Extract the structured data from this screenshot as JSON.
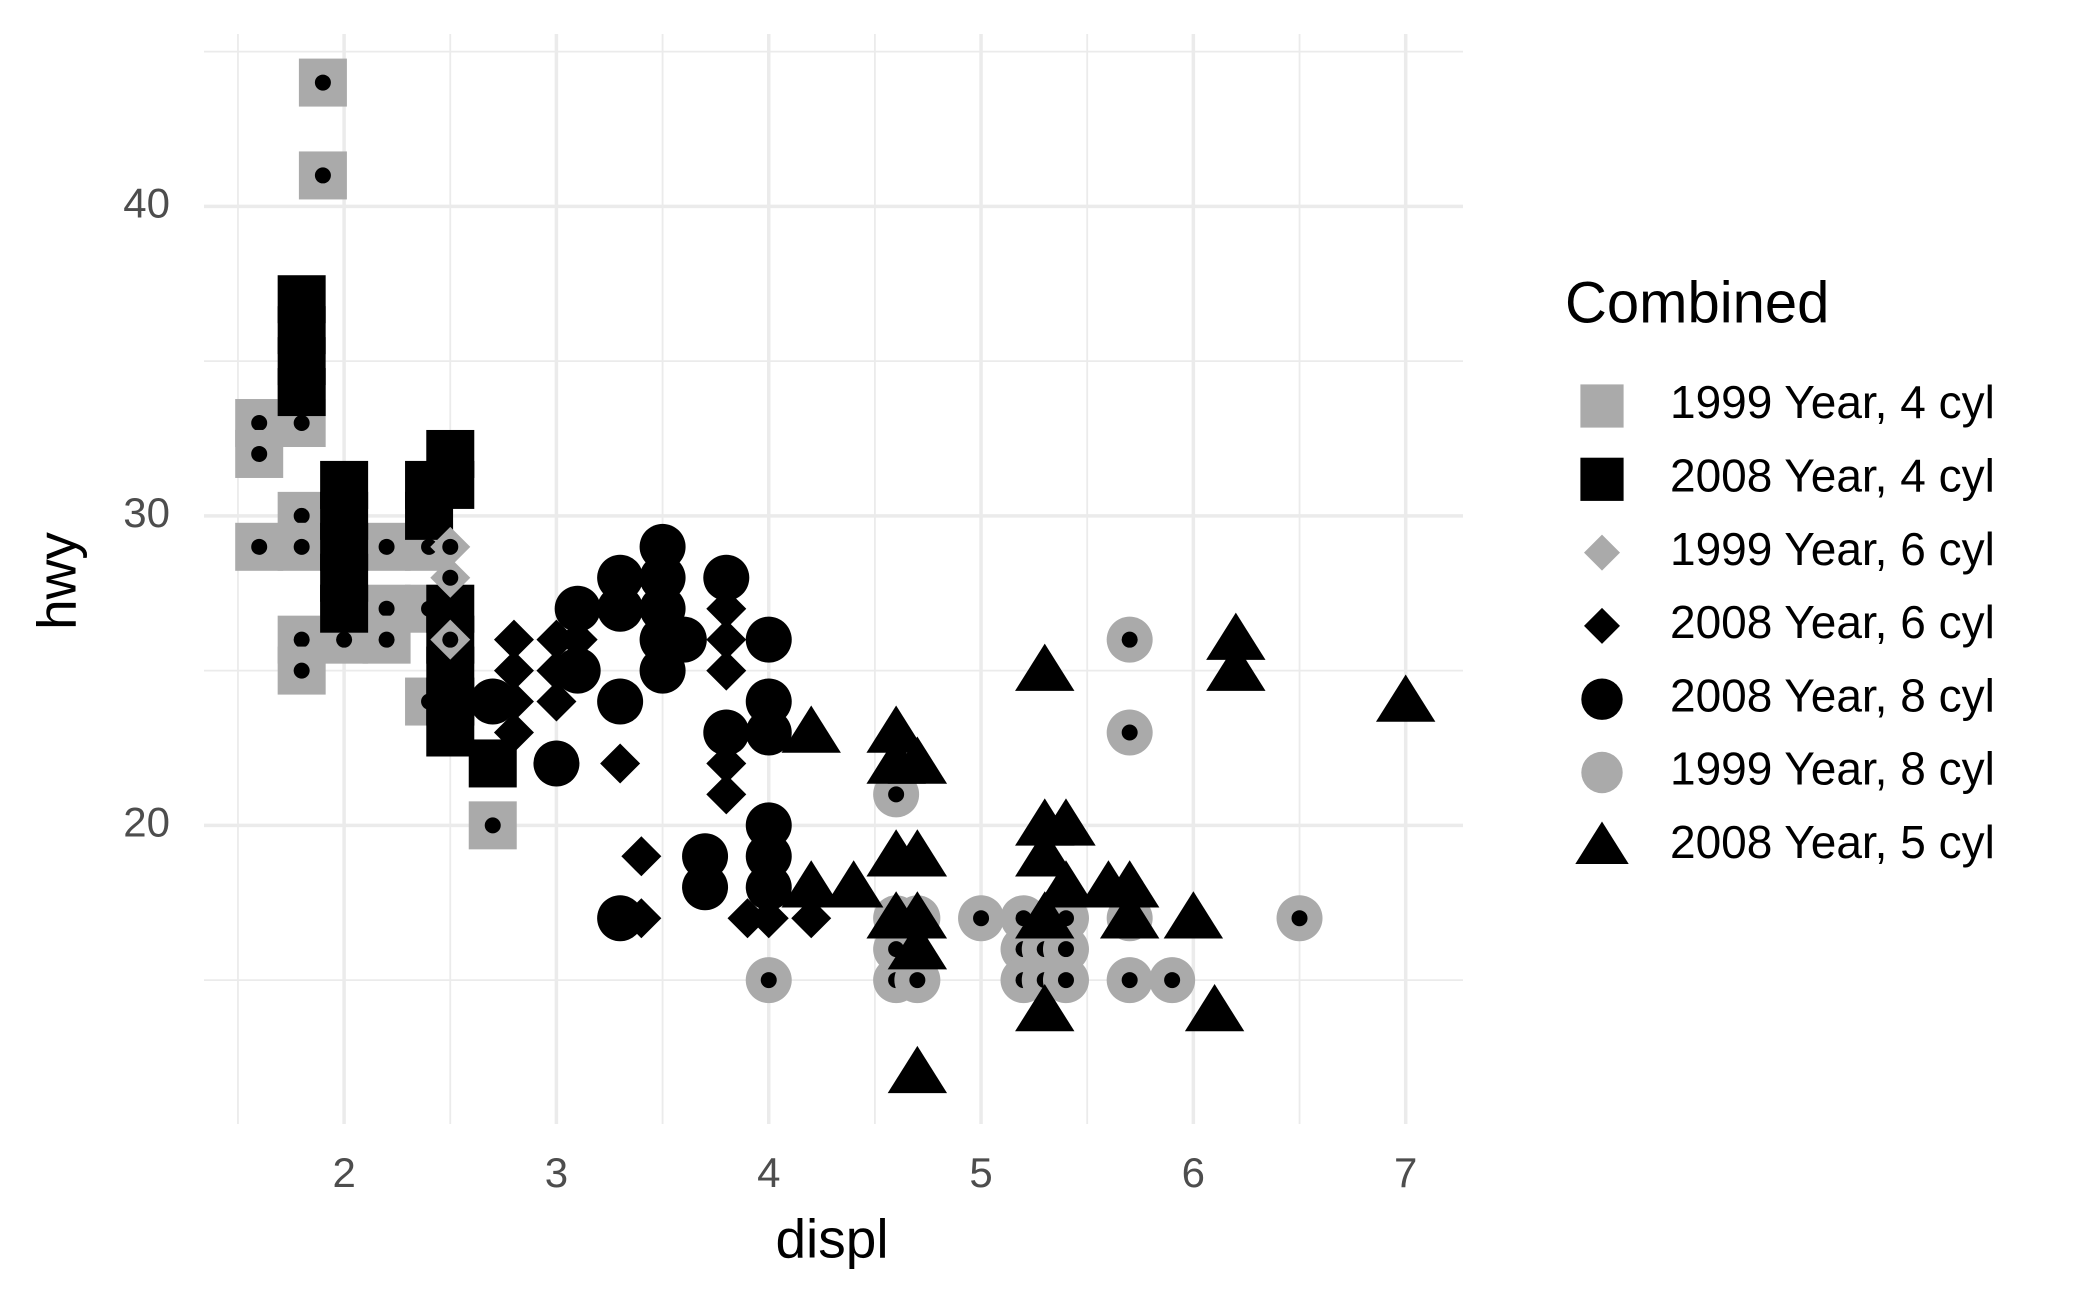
{
  "chart_data": {
    "type": "scatter",
    "x_label": "displ",
    "y_label": "hwy",
    "xlim": [
      1.34,
      7.27
    ],
    "ylim": [
      10.35,
      45.57
    ],
    "xticks": [
      2,
      3,
      4,
      5,
      6,
      7
    ],
    "yticks": [
      20,
      30,
      40
    ],
    "x_minor_grid": [
      1.5,
      2.5,
      3.5,
      4.5,
      5.5,
      6.5
    ],
    "y_minor_grid": [
      15,
      25,
      35,
      45
    ],
    "grid": true,
    "legend_title": "Combined",
    "legend_position": "right",
    "series": [
      {
        "name": "1999 Year, 4 cyl",
        "color": "#aaaaaa",
        "shape": "square",
        "center_dot": true,
        "x": [
          1.6,
          1.6,
          1.6,
          1.8,
          1.8,
          1.8,
          1.8,
          1.8,
          1.8,
          1.9,
          1.9,
          2.0,
          2.0,
          2.2,
          2.2,
          2.2,
          2.4,
          2.4,
          2.4,
          2.4,
          2.7
        ],
        "values": [
          33,
          32,
          29,
          34,
          33,
          30,
          29,
          26,
          25,
          44,
          41,
          27,
          26,
          29,
          27,
          26,
          30,
          29,
          27,
          24,
          20
        ]
      },
      {
        "name": "2008 Year, 4 cyl",
        "color": "#000000",
        "shape": "square",
        "center_dot": false,
        "x": [
          1.8,
          1.8,
          1.8,
          1.8,
          2.0,
          2.0,
          2.0,
          2.0,
          2.0,
          2.4,
          2.4,
          2.5,
          2.5,
          2.5,
          2.5,
          2.5,
          2.5,
          2.5,
          2.7
        ],
        "values": [
          37,
          36,
          35,
          34,
          31,
          30,
          29,
          28,
          27,
          31,
          30,
          32,
          31,
          27,
          26,
          25,
          24,
          23,
          22
        ]
      },
      {
        "name": "1999 Year, 6 cyl",
        "color": "#aaaaaa",
        "shape": "diamond",
        "center_dot": true,
        "x": [
          2.5,
          2.5,
          2.5
        ],
        "values": [
          29,
          28,
          26
        ]
      },
      {
        "name": "2008 Year, 6 cyl",
        "color": "#000000",
        "shape": "diamond",
        "center_dot": false,
        "x": [
          2.8,
          2.8,
          2.8,
          2.8,
          3.0,
          3.0,
          3.0,
          3.1,
          3.3,
          3.4,
          3.4,
          3.8,
          3.8,
          3.8,
          3.8,
          3.8,
          3.9,
          4.0,
          4.2
        ],
        "values": [
          26,
          25,
          24,
          23,
          26,
          25,
          24,
          26,
          22,
          19,
          17,
          27,
          26,
          25,
          22,
          21,
          17,
          17,
          17
        ]
      },
      {
        "name": "2008 Year, 8 cyl",
        "color": "#000000",
        "shape": "circle",
        "center_dot": false,
        "x": [
          2.7,
          3.0,
          3.1,
          3.1,
          3.3,
          3.3,
          3.3,
          3.3,
          3.5,
          3.5,
          3.5,
          3.5,
          3.5,
          3.6,
          3.7,
          3.7,
          3.8,
          3.8,
          4.0,
          4.0,
          4.0,
          4.0,
          4.0,
          4.0
        ],
        "values": [
          24,
          22,
          27,
          25,
          28,
          27,
          24,
          17,
          29,
          28,
          27,
          26,
          25,
          26,
          19,
          18,
          28,
          23,
          26,
          24,
          23,
          20,
          19,
          18
        ]
      },
      {
        "name": "1999 Year, 8 cyl",
        "color": "#aaaaaa",
        "shape": "circle",
        "center_dot": true,
        "x": [
          4.0,
          4.6,
          4.6,
          4.6,
          4.6,
          4.7,
          4.7,
          5.0,
          5.2,
          5.2,
          5.2,
          5.3,
          5.3,
          5.4,
          5.4,
          5.4,
          5.7,
          5.7,
          5.7,
          5.7,
          5.9,
          6.5
        ],
        "values": [
          15,
          21,
          17,
          16,
          15,
          17,
          15,
          17,
          17,
          16,
          15,
          16,
          15,
          17,
          16,
          15,
          26,
          23,
          17,
          15,
          15,
          17
        ]
      },
      {
        "name": "2008 Year, 5 cyl",
        "color": "#000000",
        "shape": "triangle",
        "center_dot": false,
        "x": [
          4.2,
          4.2,
          4.4,
          4.6,
          4.6,
          4.6,
          4.6,
          4.7,
          4.7,
          4.7,
          4.7,
          4.7,
          5.3,
          5.3,
          5.3,
          5.3,
          5.3,
          5.4,
          5.4,
          5.6,
          5.7,
          5.7,
          6.0,
          6.1,
          6.2,
          6.2,
          7.0
        ],
        "values": [
          23,
          18,
          18,
          23,
          22,
          19,
          17,
          22,
          19,
          17,
          16,
          12,
          25,
          20,
          19,
          17,
          14,
          20,
          18,
          18,
          18,
          17,
          17,
          14,
          26,
          25,
          24
        ]
      }
    ]
  }
}
